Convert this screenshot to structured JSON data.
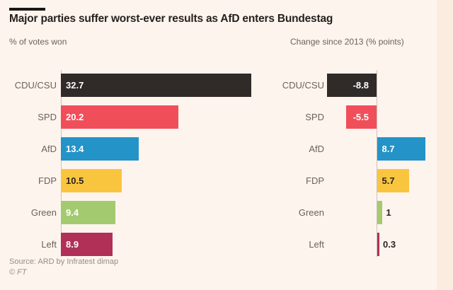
{
  "title": "Major parties suffer worst-ever results as AfD enters Bundestag",
  "source": "Source: ARD by Infratest dimap",
  "copyright": "© FT",
  "colors": {
    "page_background": "#fcecdf",
    "panel_background": "#fdf4ed",
    "accent_bar": "#1a1817",
    "axis_line": "#cbc2ba",
    "title_text": "#26211d",
    "label_text": "#6b625c",
    "source_text": "#968d86"
  },
  "chart_data": [
    {
      "type": "bar",
      "orientation": "horizontal",
      "subtitle": "% of votes won",
      "categories": [
        "CDU/CSU",
        "SPD",
        "AfD",
        "FDP",
        "Green",
        "Left"
      ],
      "values": [
        32.7,
        20.2,
        13.4,
        10.5,
        9.4,
        8.9
      ],
      "value_labels": [
        "32.7",
        "20.2",
        "13.4",
        "10.5",
        "9.4",
        "8.9"
      ],
      "bar_colors": [
        "#302b28",
        "#f04f5a",
        "#2493c8",
        "#fac53e",
        "#a4ca70",
        "#b03057"
      ],
      "value_text_colors": [
        "#ffffff",
        "#ffffff",
        "#ffffff",
        "#2b2521",
        "#ffffff",
        "#ffffff"
      ],
      "xlim": [
        0,
        33.5
      ],
      "grid": false,
      "legend": false
    },
    {
      "type": "bar",
      "orientation": "horizontal",
      "subtitle": "Change since 2013 (% points)",
      "categories": [
        "CDU/CSU",
        "SPD",
        "AfD",
        "FDP",
        "Green",
        "Left"
      ],
      "values": [
        -8.8,
        -5.5,
        8.7,
        5.7,
        1,
        0.3
      ],
      "value_labels": [
        "-8.8",
        "-5.5",
        "8.7",
        "5.7",
        "1",
        "0.3"
      ],
      "bar_colors": [
        "#302b28",
        "#f04f5a",
        "#2493c8",
        "#fac53e",
        "#a4ca70",
        "#b03057"
      ],
      "value_text_colors": [
        "#ffffff",
        "#ffffff",
        "#ffffff",
        "#2b2521",
        "#2b2521",
        "#2b2521"
      ],
      "xlim": [
        -10.5,
        10.5
      ],
      "grid": false,
      "legend": false
    }
  ]
}
